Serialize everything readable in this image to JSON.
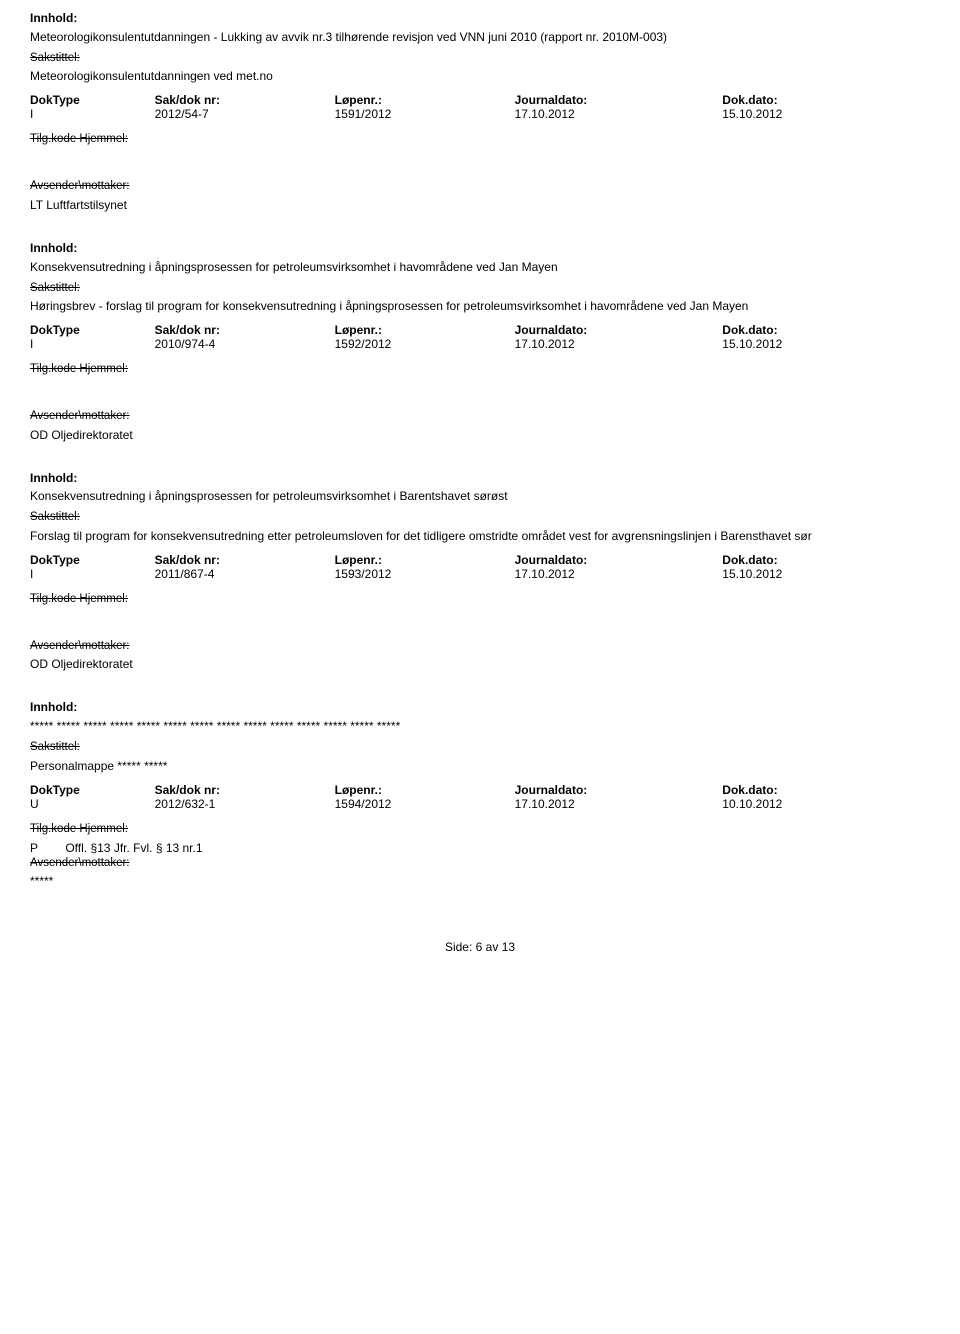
{
  "labels": {
    "innhold": "Innhold:",
    "sakstittel": "Sakstittel:",
    "doktype": "DokType",
    "sakdoknr": "Sak/dok nr:",
    "lopenr": "Løpenr.:",
    "journaldato": "Journaldato:",
    "dokdato": "Dok.dato:",
    "tilgkode": "Tilg.kode Hjemmel:",
    "avsmott": "Avsender\\mottaker:"
  },
  "entries": [
    {
      "innhold": "Meteorologikonsulentutdanningen - Lukking av avvik nr.3 tilhørende revisjon ved VNN juni 2010 (rapport nr. 2010M-003)",
      "sakstittel": "Meteorologikonsulentutdanningen ved met.no",
      "doktype": "I",
      "sakdoknr": "2012/54-7",
      "lopenr": "1591/2012",
      "journaldato": "17.10.2012",
      "dokdato": "15.10.2012",
      "tilg_extra": "",
      "avsender": "LT Luftfartstilsynet"
    },
    {
      "innhold": "Konsekvensutredning i åpningsprosessen for petroleumsvirksomhet i havområdene ved Jan Mayen",
      "sakstittel": "Høringsbrev - forslag til program for konsekvensutredning i åpningsprosessen for petroleumsvirksomhet i havområdene ved Jan Mayen",
      "doktype": "I",
      "sakdoknr": "2010/974-4",
      "lopenr": "1592/2012",
      "journaldato": "17.10.2012",
      "dokdato": "15.10.2012",
      "tilg_extra": "",
      "avsender": "OD Oljedirektoratet"
    },
    {
      "innhold": "Konsekvensutredning i åpningsprosessen for petroleumsvirksomhet i Barentshavet sørøst",
      "sakstittel": "Forslag til program for konsekvensutredning etter petroleumsloven for det tidligere omstridte området vest for avgrensningslinjen i Barensthavet sør",
      "doktype": "I",
      "sakdoknr": "2011/867-4",
      "lopenr": "1593/2012",
      "journaldato": "17.10.2012",
      "dokdato": "15.10.2012",
      "tilg_extra": "",
      "avsender": "OD Oljedirektoratet"
    },
    {
      "innhold": "***** ***** ***** ***** ***** ***** ***** ***** ***** ***** ***** ***** ***** *****",
      "sakstittel": "Personalmappe ***** *****",
      "doktype": "U",
      "sakdoknr": "2012/632-1",
      "lopenr": "1594/2012",
      "journaldato": "17.10.2012",
      "dokdato": "10.10.2012",
      "tilg_prefix": "P",
      "tilg_extra": "Offl. §13 Jfr. Fvl. § 13 nr.1",
      "avsender": "*****"
    }
  ],
  "footer": {
    "side": "Side:",
    "current": "6",
    "av": "av",
    "total": "13"
  }
}
